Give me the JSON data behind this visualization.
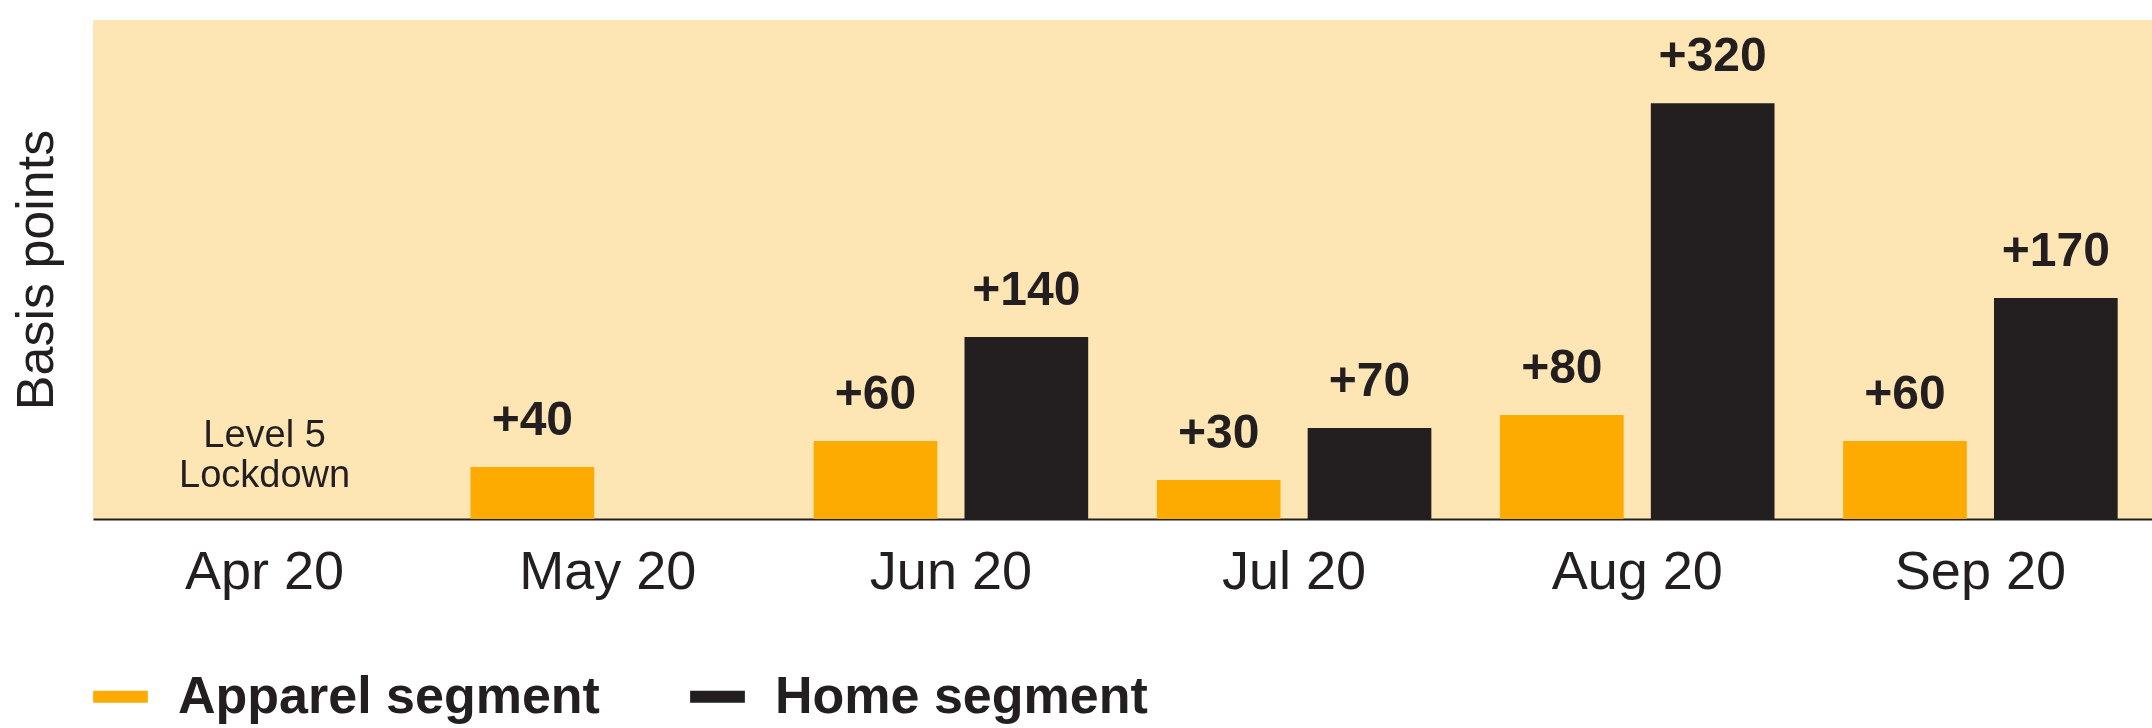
{
  "chart_data": {
    "type": "bar",
    "ylabel": "Basis points",
    "categories": [
      "Apr 20",
      "May 20",
      "Jun 20",
      "Jul 20",
      "Aug 20",
      "Sep 20"
    ],
    "series": [
      {
        "name": "Apparel segment",
        "color": "#fdab00",
        "values": [
          null,
          40,
          60,
          30,
          80,
          60
        ],
        "value_labels": [
          null,
          "+40",
          "+60",
          "+30",
          "+80",
          "+60"
        ]
      },
      {
        "name": "Home segment",
        "color": "#231f20",
        "values": [
          null,
          null,
          140,
          70,
          320,
          170
        ],
        "value_labels": [
          null,
          null,
          "+140",
          "+70",
          "+320",
          "+170"
        ]
      }
    ],
    "annotations": [
      "Level 5\nLockdown"
    ],
    "legend": "bottom left",
    "grid": false
  }
}
